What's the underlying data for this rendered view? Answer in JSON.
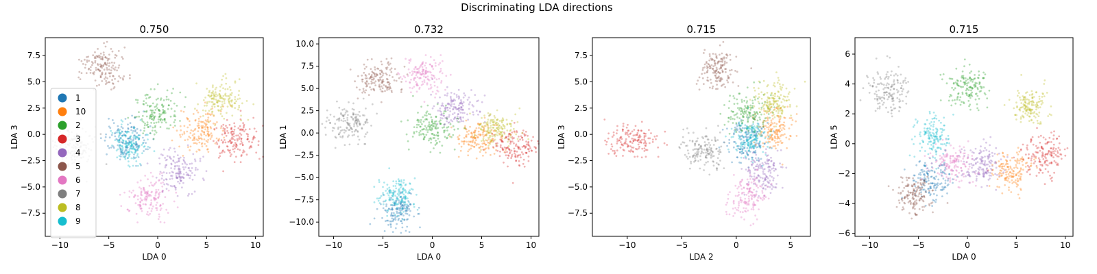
{
  "figure": {
    "title": "Discriminating LDA directions"
  },
  "legend_location": "center-left",
  "class_colors": {
    "1": "#1f77b4",
    "10": "#ff7f0e",
    "2": "#2ca02c",
    "3": "#d62728",
    "4": "#9467bd",
    "5": "#8c564b",
    "6": "#e377c2",
    "7": "#7f7f7f",
    "8": "#bcbd22",
    "9": "#17becf"
  },
  "chart_data": [
    {
      "type": "scatter",
      "title": "0.750",
      "xlabel": "LDA 0",
      "ylabel": "LDA 3",
      "xlim": [
        -11.5,
        10.8
      ],
      "ylim": [
        -9.7,
        9.2
      ],
      "xticks": [
        -10,
        -5,
        0,
        5,
        10
      ],
      "xtick_labels": [
        "−10",
        "−5",
        "0",
        "5",
        "10"
      ],
      "yticks": [
        -7.5,
        -5.0,
        -2.5,
        0.0,
        2.5,
        5.0,
        7.5
      ],
      "ytick_labels": [
        "−7.5",
        "−5.0",
        "−2.5",
        "0.0",
        "2.5",
        "5.0",
        "7.5"
      ],
      "legend": {
        "location": "center-left",
        "entries": [
          "1",
          "10",
          "2",
          "3",
          "4",
          "5",
          "6",
          "7",
          "8",
          "9"
        ]
      },
      "clusters": [
        {
          "label": "1",
          "center": [
            -3.3,
            -0.5
          ],
          "spread": [
            1.1,
            1.0
          ]
        },
        {
          "label": "10",
          "center": [
            4.5,
            0.3
          ],
          "spread": [
            1.1,
            1.0
          ]
        },
        {
          "label": "2",
          "center": [
            -0.2,
            2.2
          ],
          "spread": [
            1.2,
            1.0
          ]
        },
        {
          "label": "3",
          "center": [
            8.0,
            -0.5
          ],
          "spread": [
            1.1,
            1.0
          ]
        },
        {
          "label": "4",
          "center": [
            2.0,
            -3.5
          ],
          "spread": [
            1.1,
            1.0
          ]
        },
        {
          "label": "5",
          "center": [
            -5.5,
            6.3
          ],
          "spread": [
            1.1,
            1.0
          ]
        },
        {
          "label": "6",
          "center": [
            -1.0,
            -6.0
          ],
          "spread": [
            1.1,
            1.0
          ]
        },
        {
          "label": "7",
          "center": [
            -8.5,
            -1.2
          ],
          "spread": [
            1.1,
            1.0
          ]
        },
        {
          "label": "8",
          "center": [
            6.5,
            3.2
          ],
          "spread": [
            1.0,
            0.9
          ]
        },
        {
          "label": "9",
          "center": [
            -3.0,
            -1.0
          ],
          "spread": [
            0.9,
            0.9
          ]
        }
      ]
    },
    {
      "type": "scatter",
      "title": "0.732",
      "xlabel": "LDA 0",
      "ylabel": "LDA 1",
      "xlim": [
        -11.5,
        10.8
      ],
      "ylim": [
        -11.6,
        10.7
      ],
      "xticks": [
        -10,
        -5,
        0,
        5,
        10
      ],
      "xtick_labels": [
        "−10",
        "−5",
        "0",
        "5",
        "10"
      ],
      "yticks": [
        -10.0,
        -7.5,
        -5.0,
        -2.5,
        0.0,
        2.5,
        5.0,
        7.5,
        10.0
      ],
      "ytick_labels": [
        "−10.0",
        "−7.5",
        "−5.0",
        "−2.5",
        "0.0",
        "2.5",
        "5.0",
        "7.5",
        "10.0"
      ],
      "clusters": [
        {
          "label": "1",
          "center": [
            -3.5,
            -8.8
          ],
          "spread": [
            0.9,
            1.0
          ]
        },
        {
          "label": "10",
          "center": [
            4.8,
            -0.5
          ],
          "spread": [
            1.1,
            1.0
          ]
        },
        {
          "label": "2",
          "center": [
            0.0,
            0.5
          ],
          "spread": [
            1.2,
            1.1
          ]
        },
        {
          "label": "3",
          "center": [
            8.5,
            -1.5
          ],
          "spread": [
            1.1,
            1.0
          ]
        },
        {
          "label": "4",
          "center": [
            2.3,
            2.8
          ],
          "spread": [
            1.1,
            1.0
          ]
        },
        {
          "label": "5",
          "center": [
            -5.5,
            6.0
          ],
          "spread": [
            1.1,
            1.0
          ]
        },
        {
          "label": "6",
          "center": [
            -1.0,
            6.5
          ],
          "spread": [
            1.1,
            1.0
          ]
        },
        {
          "label": "7",
          "center": [
            -8.5,
            1.2
          ],
          "spread": [
            1.1,
            1.0
          ]
        },
        {
          "label": "8",
          "center": [
            6.5,
            0.5
          ],
          "spread": [
            1.0,
            0.9
          ]
        },
        {
          "label": "9",
          "center": [
            -3.5,
            -7.0
          ],
          "spread": [
            0.9,
            1.0
          ]
        }
      ]
    },
    {
      "type": "scatter",
      "title": "0.715",
      "xlabel": "LDA 2",
      "ylabel": "LDA 3",
      "xlim": [
        -13.2,
        6.8
      ],
      "ylim": [
        -9.7,
        9.2
      ],
      "xticks": [
        -10,
        -5,
        0,
        5
      ],
      "xtick_labels": [
        "−10",
        "−5",
        "0",
        "5"
      ],
      "yticks": [
        -7.5,
        -5.0,
        -2.5,
        0.0,
        2.5,
        5.0,
        7.5
      ],
      "ytick_labels": [
        "−7.5",
        "−5.0",
        "−2.5",
        "0.0",
        "2.5",
        "5.0",
        "7.5"
      ],
      "clusters": [
        {
          "label": "1",
          "center": [
            1.0,
            -0.5
          ],
          "spread": [
            0.9,
            1.0
          ]
        },
        {
          "label": "10",
          "center": [
            3.5,
            0.5
          ],
          "spread": [
            0.8,
            1.0
          ]
        },
        {
          "label": "2",
          "center": [
            1.0,
            2.0
          ],
          "spread": [
            1.0,
            1.0
          ]
        },
        {
          "label": "3",
          "center": [
            -9.5,
            -0.5
          ],
          "spread": [
            1.2,
            0.8
          ]
        },
        {
          "label": "4",
          "center": [
            2.5,
            -3.5
          ],
          "spread": [
            0.9,
            1.0
          ]
        },
        {
          "label": "5",
          "center": [
            -1.8,
            6.3
          ],
          "spread": [
            0.9,
            1.0
          ]
        },
        {
          "label": "6",
          "center": [
            1.0,
            -6.0
          ],
          "spread": [
            0.9,
            1.0
          ]
        },
        {
          "label": "7",
          "center": [
            -3.0,
            -1.5
          ],
          "spread": [
            0.9,
            0.9
          ]
        },
        {
          "label": "8",
          "center": [
            3.5,
            3.2
          ],
          "spread": [
            0.8,
            0.9
          ]
        },
        {
          "label": "9",
          "center": [
            1.2,
            -0.5
          ],
          "spread": [
            0.7,
            0.8
          ]
        }
      ]
    },
    {
      "type": "scatter",
      "title": "0.715",
      "xlabel": "LDA 0",
      "ylabel": "LDA 5",
      "xlim": [
        -11.5,
        10.8
      ],
      "ylim": [
        -6.2,
        7.1
      ],
      "xticks": [
        -10,
        -5,
        0,
        5,
        10
      ],
      "xtick_labels": [
        "−10",
        "−5",
        "0",
        "5",
        "10"
      ],
      "yticks": [
        -6,
        -4,
        -2,
        0,
        2,
        4,
        6
      ],
      "ytick_labels": [
        "−6",
        "−4",
        "−2",
        "0",
        "2",
        "4",
        "6"
      ],
      "clusters": [
        {
          "label": "1",
          "center": [
            -3.5,
            -2.3
          ],
          "spread": [
            1.0,
            0.7
          ]
        },
        {
          "label": "10",
          "center": [
            4.5,
            -1.8
          ],
          "spread": [
            1.0,
            0.7
          ]
        },
        {
          "label": "2",
          "center": [
            0.0,
            3.8
          ],
          "spread": [
            1.1,
            0.7
          ]
        },
        {
          "label": "3",
          "center": [
            8.0,
            -0.8
          ],
          "spread": [
            1.1,
            0.7
          ]
        },
        {
          "label": "4",
          "center": [
            1.5,
            -1.5
          ],
          "spread": [
            1.1,
            0.7
          ]
        },
        {
          "label": "5",
          "center": [
            -5.5,
            -3.5
          ],
          "spread": [
            1.0,
            0.7
          ]
        },
        {
          "label": "6",
          "center": [
            -1.5,
            -1.3
          ],
          "spread": [
            1.1,
            0.7
          ]
        },
        {
          "label": "7",
          "center": [
            -8.0,
            3.5
          ],
          "spread": [
            1.1,
            0.7
          ]
        },
        {
          "label": "8",
          "center": [
            6.5,
            2.5
          ],
          "spread": [
            0.9,
            0.7
          ]
        },
        {
          "label": "9",
          "center": [
            -3.5,
            0.5
          ],
          "spread": [
            0.9,
            0.8
          ]
        }
      ]
    }
  ]
}
